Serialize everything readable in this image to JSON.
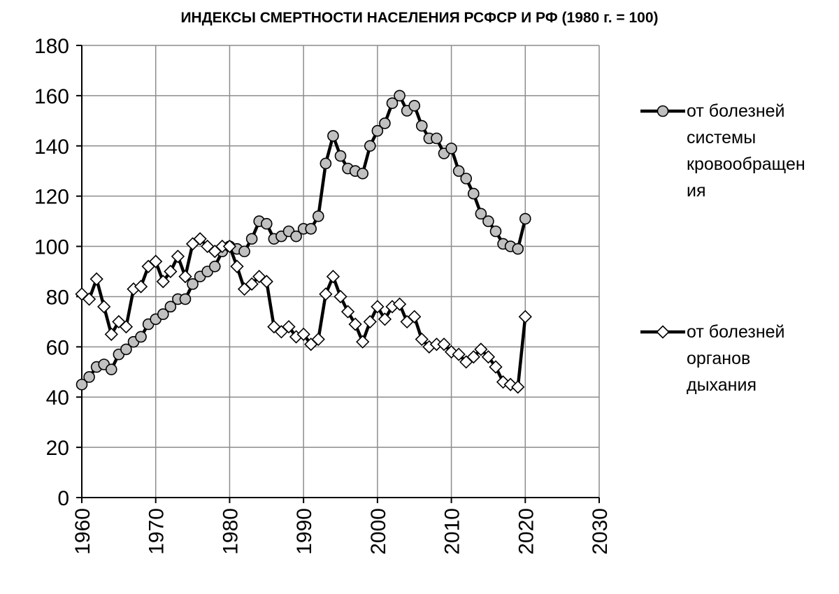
{
  "chart_data": {
    "type": "line",
    "title": "ИНДЕКСЫ СМЕРТНОСТИ НАСЕЛЕНИЯ РСФСР И РФ (1980 г. = 100)",
    "xlabel": "",
    "ylabel": "",
    "xlim": [
      1960,
      2030
    ],
    "ylim": [
      0,
      180
    ],
    "x_ticks": [
      "1960",
      "1970",
      "1980",
      "1990",
      "2000",
      "2010",
      "2020",
      "2030"
    ],
    "y_ticks": [
      "0",
      "20",
      "40",
      "60",
      "80",
      "100",
      "120",
      "140",
      "160",
      "180"
    ],
    "grid": true,
    "legend_position": "right",
    "x": [
      1960,
      1961,
      1962,
      1963,
      1964,
      1965,
      1966,
      1967,
      1968,
      1969,
      1970,
      1971,
      1972,
      1973,
      1974,
      1975,
      1976,
      1977,
      1978,
      1979,
      1980,
      1981,
      1982,
      1983,
      1984,
      1985,
      1986,
      1987,
      1988,
      1989,
      1990,
      1991,
      1992,
      1993,
      1994,
      1995,
      1996,
      1997,
      1998,
      1999,
      2000,
      2001,
      2002,
      2003,
      2004,
      2005,
      2006,
      2007,
      2008,
      2009,
      2010,
      2011,
      2012,
      2013,
      2014,
      2015,
      2016,
      2017,
      2018,
      2019,
      2020
    ],
    "series": [
      {
        "name": "от болезней системы кровообращения",
        "legend_lines": [
          "от болезней",
          "системы",
          "кровообращен",
          "ия"
        ],
        "marker": "circle",
        "color": "#000000",
        "marker_fill": "#c0c0c0",
        "values": [
          45,
          48,
          52,
          53,
          51,
          57,
          59,
          62,
          64,
          69,
          71,
          73,
          76,
          79,
          79,
          85,
          88,
          90,
          92,
          98,
          100,
          99,
          98,
          103,
          110,
          109,
          103,
          104,
          106,
          104,
          107,
          107,
          112,
          133,
          144,
          136,
          131,
          130,
          129,
          140,
          146,
          149,
          157,
          160,
          154,
          156,
          148,
          143,
          143,
          137,
          139,
          130,
          127,
          121,
          113,
          110,
          106,
          101,
          100,
          99,
          111
        ]
      },
      {
        "name": "от болезней органов дыхания",
        "legend_lines": [
          "от болезней",
          "органов",
          "дыхания"
        ],
        "marker": "diamond",
        "color": "#000000",
        "marker_fill": "#ffffff",
        "values": [
          81,
          79,
          87,
          76,
          65,
          70,
          68,
          83,
          84,
          92,
          94,
          86,
          90,
          96,
          88,
          101,
          103,
          100,
          98,
          100,
          100,
          92,
          83,
          85,
          88,
          86,
          68,
          66,
          68,
          64,
          65,
          61,
          63,
          81,
          88,
          80,
          74,
          69,
          62,
          70,
          76,
          71,
          76,
          77,
          70,
          72,
          63,
          60,
          61,
          61,
          58,
          57,
          54,
          56,
          59,
          56,
          52,
          46,
          45,
          44,
          72
        ]
      }
    ]
  }
}
